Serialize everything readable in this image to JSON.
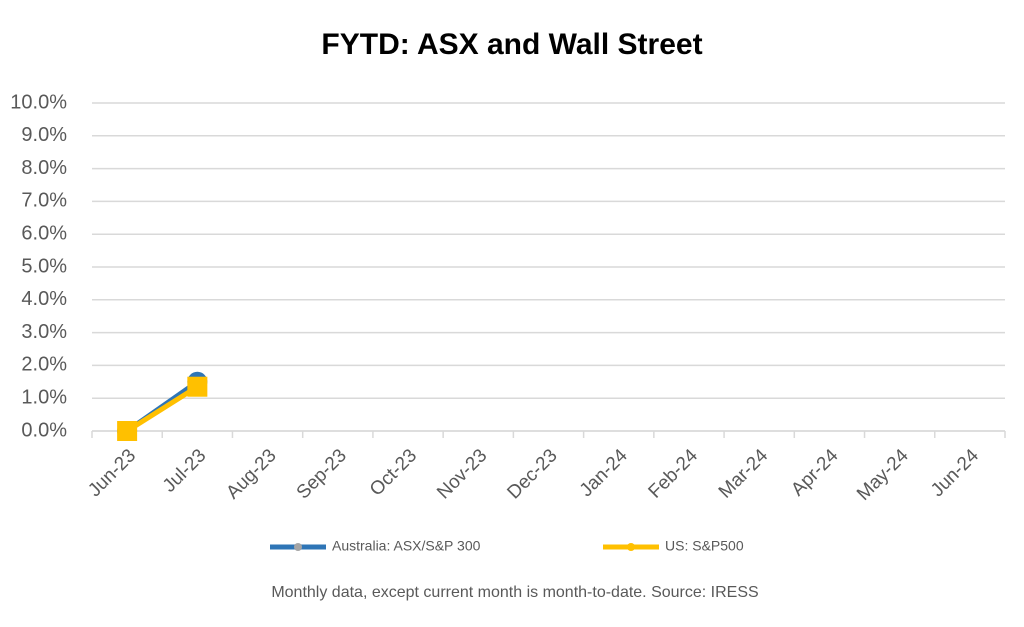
{
  "chart_data": {
    "type": "line",
    "title": "FYTD: ASX and Wall Street",
    "categories": [
      "Jun-23",
      "Jul-23",
      "Aug-23",
      "Sep-23",
      "Oct-23",
      "Nov-23",
      "Dec-23",
      "Jan-24",
      "Feb-24",
      "Mar-24",
      "Apr-24",
      "May-24",
      "Jun-24"
    ],
    "series": [
      {
        "name": "Australia: ASX/S&P 300",
        "color": "#2e75b6",
        "marker": "circle",
        "values": [
          0,
          1.5,
          null,
          null,
          null,
          null,
          null,
          null,
          null,
          null,
          null,
          null,
          null
        ]
      },
      {
        "name": "US: S&P500",
        "color": "#ffc000",
        "marker": "square",
        "values": [
          0,
          1.35,
          null,
          null,
          null,
          null,
          null,
          null,
          null,
          null,
          null,
          null,
          null
        ]
      }
    ],
    "ylim": [
      0,
      10
    ],
    "yticks": [
      {
        "value": 0,
        "label": "0.0%"
      },
      {
        "value": 1,
        "label": "1.0%"
      },
      {
        "value": 2,
        "label": "2.0%"
      },
      {
        "value": 3,
        "label": "3.0%"
      },
      {
        "value": 4,
        "label": "4.0%"
      },
      {
        "value": 5,
        "label": "5.0%"
      },
      {
        "value": 6,
        "label": "6.0%"
      },
      {
        "value": 7,
        "label": "7.0%"
      },
      {
        "value": 8,
        "label": "8.0%"
      },
      {
        "value": 9,
        "label": "9.0%"
      },
      {
        "value": 10,
        "label": "10.0%"
      }
    ],
    "grid": true,
    "legend": "bottom",
    "note": "Monthly data, except current month is month-to-date.  Source: IRESS"
  }
}
